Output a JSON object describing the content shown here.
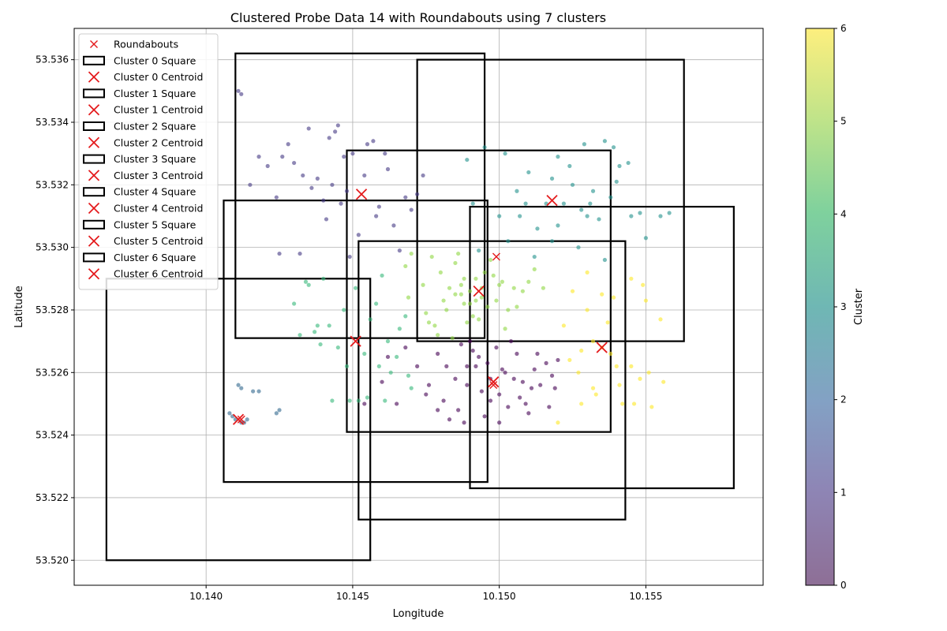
{
  "chart_data": {
    "type": "scatter",
    "title": "Clustered Probe Data 14 with Roundabouts using 7 clusters",
    "xlabel": "Longitude",
    "ylabel": "Latitude",
    "xlim": [
      10.1355,
      10.159
    ],
    "ylim": [
      53.5192,
      53.537
    ],
    "xticks": [
      10.14,
      10.145,
      10.15,
      10.155
    ],
    "xtick_labels": [
      "10.140",
      "10.145",
      "10.150",
      "10.155"
    ],
    "yticks": [
      53.52,
      53.522,
      53.524,
      53.526,
      53.528,
      53.53,
      53.532,
      53.534,
      53.536
    ],
    "ytick_labels": [
      "53.520",
      "53.522",
      "53.524",
      "53.526",
      "53.528",
      "53.530",
      "53.532",
      "53.534",
      "53.536"
    ],
    "grid": true,
    "legend_position": "top-left",
    "colorbar": {
      "label": "Cluster",
      "min": 0,
      "max": 6,
      "ticks": [
        0,
        1,
        2,
        3,
        4,
        5,
        6
      ],
      "tick_labels": [
        "0",
        "1",
        "2",
        "3",
        "4",
        "5",
        "6"
      ],
      "colormap": "viridis"
    },
    "cluster_colors": [
      "#440154",
      "#443983",
      "#31688e",
      "#21918c",
      "#35b779",
      "#90d743",
      "#fde725"
    ],
    "marker_color": "#e41a1c",
    "legend": [
      {
        "label": "Roundabouts",
        "kind": "x-small"
      },
      {
        "label": "Cluster 0 Square",
        "kind": "square"
      },
      {
        "label": "Cluster 0 Centroid",
        "kind": "x-large"
      },
      {
        "label": "Cluster 1 Square",
        "kind": "square"
      },
      {
        "label": "Cluster 1 Centroid",
        "kind": "x-large"
      },
      {
        "label": "Cluster 2 Square",
        "kind": "square"
      },
      {
        "label": "Cluster 2 Centroid",
        "kind": "x-large"
      },
      {
        "label": "Cluster 3 Square",
        "kind": "square"
      },
      {
        "label": "Cluster 3 Centroid",
        "kind": "x-large"
      },
      {
        "label": "Cluster 4 Square",
        "kind": "square"
      },
      {
        "label": "Cluster 4 Centroid",
        "kind": "x-large"
      },
      {
        "label": "Cluster 5 Square",
        "kind": "square"
      },
      {
        "label": "Cluster 5 Centroid",
        "kind": "x-large"
      },
      {
        "label": "Cluster 6 Square",
        "kind": "square"
      },
      {
        "label": "Cluster 6 Centroid",
        "kind": "x-large"
      }
    ],
    "squares": [
      {
        "cluster": 0,
        "x0": 10.1452,
        "x1": 10.1543,
        "y0": 53.5213,
        "y1": 53.5302
      },
      {
        "cluster": 1,
        "x0": 10.141,
        "x1": 10.1495,
        "y0": 53.5271,
        "y1": 53.5362
      },
      {
        "cluster": 2,
        "x0": 10.1366,
        "x1": 10.1456,
        "y0": 53.52,
        "y1": 53.529
      },
      {
        "cluster": 3,
        "x0": 10.1472,
        "x1": 10.1563,
        "y0": 53.527,
        "y1": 53.536
      },
      {
        "cluster": 4,
        "x0": 10.1406,
        "x1": 10.1496,
        "y0": 53.5225,
        "y1": 53.5315
      },
      {
        "cluster": 5,
        "x0": 10.1448,
        "x1": 10.1538,
        "y0": 53.5241,
        "y1": 53.5331
      },
      {
        "cluster": 6,
        "x0": 10.149,
        "x1": 10.158,
        "y0": 53.5223,
        "y1": 53.5313
      }
    ],
    "centroids": [
      {
        "cluster": 0,
        "x": 10.1498,
        "y": 53.5257
      },
      {
        "cluster": 1,
        "x": 10.1453,
        "y": 53.5317
      },
      {
        "cluster": 2,
        "x": 10.1411,
        "y": 53.5245
      },
      {
        "cluster": 3,
        "x": 10.1518,
        "y": 53.5315
      },
      {
        "cluster": 4,
        "x": 10.1451,
        "y": 53.527
      },
      {
        "cluster": 5,
        "x": 10.1493,
        "y": 53.5286
      },
      {
        "cluster": 6,
        "x": 10.1535,
        "y": 53.5268
      }
    ],
    "roundabouts": [
      {
        "x": 10.1499,
        "y": 53.5297
      },
      {
        "x": 10.1498,
        "y": 53.5256
      },
      {
        "x": 10.1412,
        "y": 53.5245
      }
    ],
    "points": [
      {
        "cluster": 0,
        "x": [
          10.1489,
          10.1505,
          10.1493,
          10.1511,
          10.1502,
          10.1497,
          10.1516,
          10.1486,
          10.1508,
          10.1499,
          10.1494,
          10.1513,
          10.1503,
          10.1489,
          10.1518,
          10.1495,
          10.1507,
          10.1482,
          10.15,
          10.1491,
          10.151,
          10.1485,
          10.152,
          10.1476,
          10.1465,
          10.1472,
          10.146,
          10.1468,
          10.1479,
          10.1454,
          10.1483,
          10.1462,
          10.1475,
          10.1481,
          10.149,
          10.1488,
          10.1504,
          10.1512,
          10.1497,
          10.1479,
          10.1492,
          10.1506,
          10.15,
          10.1514,
          10.1487,
          10.1509,
          10.1496,
          10.1501,
          10.1519,
          10.1517
        ],
        "y": [
          53.5262,
          53.5258,
          53.5265,
          53.5255,
          53.526,
          53.5251,
          53.5263,
          53.5248,
          53.5257,
          53.5268,
          53.5254,
          53.5266,
          53.5249,
          53.5256,
          53.5259,
          53.5246,
          53.5252,
          53.5262,
          53.5244,
          53.5267,
          53.5247,
          53.5258,
          53.5264,
          53.5256,
          53.525,
          53.5262,
          53.5257,
          53.5268,
          53.5266,
          53.525,
          53.5245,
          53.5265,
          53.5253,
          53.5251,
          53.527,
          53.5244,
          53.527,
          53.5261,
          53.5258,
          53.5248,
          53.5262,
          53.5266,
          53.5253,
          53.5256,
          53.5269,
          53.525,
          53.5263,
          53.5261,
          53.5255,
          53.5249
        ]
      },
      {
        "cluster": 1,
        "x": [
          10.1421,
          10.1435,
          10.1442,
          10.145,
          10.1438,
          10.1426,
          10.1455,
          10.1462,
          10.1448,
          10.143,
          10.1415,
          10.1445,
          10.1452,
          10.1466,
          10.1459,
          10.1432,
          10.1418,
          10.144,
          10.1461,
          10.1444,
          10.1428,
          10.1474,
          10.1468,
          10.1454,
          10.1436,
          10.1412,
          10.1424,
          10.1446,
          10.147,
          10.1457,
          10.1443,
          10.1433,
          10.1464,
          10.1449,
          10.1441,
          10.1458,
          10.1472,
          10.1425,
          10.1411,
          10.1447
        ],
        "y": [
          53.5326,
          53.5338,
          53.5335,
          53.533,
          53.5322,
          53.5329,
          53.5333,
          53.5325,
          53.5318,
          53.5327,
          53.532,
          53.5339,
          53.5304,
          53.5299,
          53.5313,
          53.5298,
          53.5329,
          53.5315,
          53.533,
          53.5337,
          53.5333,
          53.5323,
          53.5316,
          53.5323,
          53.5319,
          53.5349,
          53.5316,
          53.5314,
          53.5312,
          53.5334,
          53.532,
          53.5323,
          53.5307,
          53.5297,
          53.5309,
          53.531,
          53.5317,
          53.5298,
          53.535,
          53.5329
        ]
      },
      {
        "cluster": 2,
        "x": [
          10.141,
          10.1412,
          10.1409,
          10.1414,
          10.1411,
          10.1408,
          10.1413,
          10.1412,
          10.1416,
          10.1425,
          10.1424,
          10.1418
        ],
        "y": [
          53.5245,
          53.5244,
          53.5246,
          53.5245,
          53.5256,
          53.5247,
          53.5244,
          53.5255,
          53.5254,
          53.5248,
          53.5247,
          53.5254
        ]
      },
      {
        "cluster": 3,
        "x": [
          10.1495,
          10.1502,
          10.1489,
          10.151,
          10.1518,
          10.1525,
          10.1532,
          10.1538,
          10.1541,
          10.1528,
          10.1513,
          10.1507,
          10.152,
          10.153,
          10.1545,
          10.155,
          10.1555,
          10.1539,
          10.1522,
          10.1516,
          10.15,
          10.1493,
          10.1536,
          10.154,
          10.1509,
          10.1527,
          10.1534,
          10.1548,
          10.152,
          10.1512,
          10.1503,
          10.1491,
          10.1518,
          10.1536,
          10.1524,
          10.1531,
          10.1558,
          10.1544,
          10.1529,
          10.1506
        ],
        "y": [
          53.5332,
          53.533,
          53.5328,
          53.5324,
          53.5322,
          53.532,
          53.5318,
          53.5316,
          53.5326,
          53.5312,
          53.5306,
          53.531,
          53.5307,
          53.531,
          53.531,
          53.5303,
          53.531,
          53.5332,
          53.5314,
          53.5314,
          53.531,
          53.5299,
          53.5296,
          53.5321,
          53.5314,
          53.53,
          53.5309,
          53.5311,
          53.5329,
          53.5297,
          53.5302,
          53.5314,
          53.5302,
          53.5334,
          53.5326,
          53.5314,
          53.5311,
          53.5327,
          53.5333,
          53.5318
        ]
      },
      {
        "cluster": 4,
        "x": [
          10.1435,
          10.1442,
          10.1448,
          10.1455,
          10.1462,
          10.147,
          10.1458,
          10.1465,
          10.1438,
          10.143,
          10.1445,
          10.1452,
          10.146,
          10.1468,
          10.1432,
          10.144,
          10.1456,
          10.1463,
          10.1449,
          10.1437,
          10.1443,
          10.1451,
          10.1459,
          10.1466,
          10.1434,
          10.1447,
          10.1454,
          10.1461,
          10.1469,
          10.1439
        ],
        "y": [
          53.5288,
          53.5275,
          53.5262,
          53.5252,
          53.527,
          53.5255,
          53.5282,
          53.5265,
          53.5275,
          53.5282,
          53.5268,
          53.5251,
          53.5291,
          53.5278,
          53.5272,
          53.529,
          53.5277,
          53.526,
          53.5251,
          53.5273,
          53.5251,
          53.5287,
          53.5262,
          53.5274,
          53.5289,
          53.528,
          53.5266,
          53.5251,
          53.5259,
          53.5269
        ]
      },
      {
        "cluster": 5,
        "x": [
          10.149,
          10.1494,
          10.1487,
          10.1499,
          10.1485,
          10.1492,
          10.1496,
          10.1483,
          10.1501,
          10.1488,
          10.148,
          10.1475,
          10.147,
          10.1478,
          10.1485,
          10.1493,
          10.1505,
          10.1512,
          10.1508,
          10.1497,
          10.1491,
          10.1486,
          10.1482,
          10.1474,
          10.1468,
          10.1479,
          10.1489,
          10.1495,
          10.1503,
          10.151,
          10.1515,
          10.1484,
          10.1477,
          10.1469,
          10.1498,
          10.1502,
          10.1492,
          10.1487,
          10.1494,
          10.149,
          10.1481,
          10.1476,
          10.1506,
          10.15,
          10.1488
        ],
        "y": [
          53.5286,
          53.5284,
          53.5288,
          53.5283,
          53.5285,
          53.529,
          53.5281,
          53.5287,
          53.5289,
          53.5282,
          53.5292,
          53.5279,
          53.5298,
          53.5275,
          53.5295,
          53.5277,
          53.5287,
          53.5293,
          53.5286,
          53.5296,
          53.5278,
          53.5298,
          53.528,
          53.5288,
          53.5294,
          53.5272,
          53.5276,
          53.5292,
          53.528,
          53.5289,
          53.5287,
          53.5271,
          53.5297,
          53.5284,
          53.5291,
          53.5274,
          53.5283,
          53.5285,
          53.5287,
          53.5282,
          53.5283,
          53.5276,
          53.5281,
          53.5288,
          53.529
        ]
      },
      {
        "cluster": 6,
        "x": [
          10.1525,
          10.153,
          10.1535,
          10.154,
          10.1532,
          10.1528,
          10.1522,
          10.1545,
          10.155,
          10.1555,
          10.1548,
          10.1542,
          10.1538,
          10.1532,
          10.1527,
          10.152,
          10.153,
          10.1535,
          10.1546,
          10.1552,
          10.1556,
          10.1549,
          10.1537,
          10.1541,
          10.1528,
          10.1533,
          10.1545,
          10.1551,
          10.1524,
          10.1539
        ],
        "y": [
          53.5286,
          53.528,
          53.5268,
          53.5262,
          53.5255,
          53.525,
          53.5275,
          53.529,
          53.5283,
          53.5277,
          53.5258,
          53.525,
          53.5266,
          53.527,
          53.526,
          53.5244,
          53.5292,
          53.5285,
          53.525,
          53.5249,
          53.5257,
          53.5288,
          53.5276,
          53.5256,
          53.5267,
          53.5253,
          53.5262,
          53.526,
          53.5264,
          53.5284
        ]
      }
    ]
  }
}
